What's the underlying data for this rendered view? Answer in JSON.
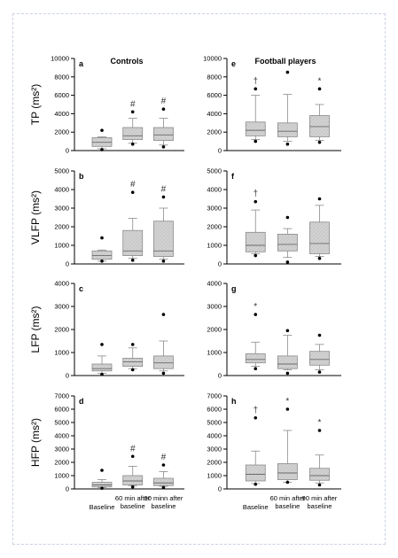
{
  "group_titles": [
    "Controls",
    "Football players"
  ],
  "x_categories": [
    [
      "Baseline"
    ],
    [
      "60 min after",
      "baseline"
    ],
    [
      "90 minn after",
      "baseline"
    ]
  ],
  "x_categories_right": [
    [
      "Baseline"
    ],
    [
      "60 min after",
      "baseline"
    ],
    [
      "90 min after",
      "baseline"
    ]
  ],
  "colors": {
    "box_fill": "#d2d2d2",
    "box_stroke": "#8a8a8a",
    "whisker": "#8a8a8a",
    "outlier": "#000000",
    "axis": "#000000"
  },
  "chart_data": [
    {
      "type": "box",
      "panel": "a",
      "ylabel": "TP (ms²)",
      "ylim": [
        0,
        10000
      ],
      "yticks": [
        0,
        2000,
        4000,
        6000,
        8000,
        10000
      ],
      "group": "Controls",
      "boxes": [
        {
          "category": "Baseline",
          "whisker_low": 200,
          "q1": 450,
          "median": 900,
          "q3": 1400,
          "whisker_high": 1500,
          "outliers": [
            100,
            2200
          ],
          "marker": ""
        },
        {
          "category": "60 min after baseline",
          "whisker_low": 800,
          "q1": 1200,
          "median": 1600,
          "q3": 2500,
          "whisker_high": 3500,
          "outliers": [
            700,
            4200
          ],
          "marker": "#"
        },
        {
          "category": "90 minn after baseline",
          "whisker_low": 600,
          "q1": 1100,
          "median": 1700,
          "q3": 2500,
          "whisker_high": 3500,
          "outliers": [
            400,
            4500
          ],
          "marker": "#"
        }
      ]
    },
    {
      "type": "box",
      "panel": "e",
      "ylabel": "",
      "ylim": [
        0,
        10000
      ],
      "yticks": [
        0,
        2000,
        4000,
        6000,
        8000,
        10000
      ],
      "group": "Football players",
      "boxes": [
        {
          "category": "Baseline",
          "whisker_low": 1200,
          "q1": 1600,
          "median": 2200,
          "q3": 3100,
          "whisker_high": 6000,
          "outliers": [
            1000,
            6700
          ],
          "marker": "†"
        },
        {
          "category": "60 min after baseline",
          "whisker_low": 1000,
          "q1": 1500,
          "median": 2100,
          "q3": 3000,
          "whisker_high": 6100,
          "outliers": [
            700,
            8500
          ],
          "marker": ""
        },
        {
          "category": "90 min after baseline",
          "whisker_low": 1100,
          "q1": 1500,
          "median": 2600,
          "q3": 3800,
          "whisker_high": 5000,
          "outliers": [
            900,
            6700
          ],
          "marker": "*"
        }
      ]
    },
    {
      "type": "box",
      "panel": "b",
      "ylabel": "VLFP (ms²)",
      "ylim": [
        0,
        5000
      ],
      "yticks": [
        0,
        1000,
        2000,
        3000,
        4000,
        5000
      ],
      "group": "Controls",
      "boxes": [
        {
          "category": "Baseline",
          "whisker_low": 150,
          "q1": 250,
          "median": 450,
          "q3": 700,
          "whisker_high": 750,
          "outliers": [
            150,
            1400
          ],
          "marker": ""
        },
        {
          "category": "60 min after baseline",
          "whisker_low": 300,
          "q1": 450,
          "median": 700,
          "q3": 1800,
          "whisker_high": 2450,
          "outliers": [
            200,
            3850
          ],
          "marker": "#"
        },
        {
          "category": "90 minn after baseline",
          "whisker_low": 250,
          "q1": 400,
          "median": 700,
          "q3": 2300,
          "whisker_high": 3000,
          "outliers": [
            150,
            3600
          ],
          "marker": "#"
        }
      ]
    },
    {
      "type": "box",
      "panel": "f",
      "ylabel": "",
      "ylim": [
        0,
        5000
      ],
      "yticks": [
        0,
        1000,
        2000,
        3000,
        4000,
        5000
      ],
      "group": "Football players",
      "boxes": [
        {
          "category": "Baseline",
          "whisker_low": 550,
          "q1": 650,
          "median": 1000,
          "q3": 1700,
          "whisker_high": 2900,
          "outliers": [
            450,
            3350
          ],
          "marker": "†"
        },
        {
          "category": "60 min after baseline",
          "whisker_low": 350,
          "q1": 700,
          "median": 1050,
          "q3": 1600,
          "whisker_high": 1900,
          "outliers": [
            100,
            2500
          ],
          "marker": ""
        },
        {
          "category": "90 min after baseline",
          "whisker_low": 400,
          "q1": 550,
          "median": 1100,
          "q3": 2250,
          "whisker_high": 3150,
          "outliers": [
            300,
            3500
          ],
          "marker": ""
        }
      ]
    },
    {
      "type": "box",
      "panel": "c",
      "ylabel": "LFP (ms²)",
      "ylim": [
        0,
        4000
      ],
      "yticks": [
        0,
        1000,
        2000,
        3000,
        4000
      ],
      "group": "Controls",
      "boxes": [
        {
          "category": "Baseline",
          "whisker_low": 100,
          "q1": 200,
          "median": 300,
          "q3": 500,
          "whisker_high": 850,
          "outliers": [
            50,
            1350
          ],
          "marker": ""
        },
        {
          "category": "60 min after baseline",
          "whisker_low": 300,
          "q1": 400,
          "median": 600,
          "q3": 750,
          "whisker_high": 1200,
          "outliers": [
            250,
            1350
          ],
          "marker": ""
        },
        {
          "category": "90 minn after baseline",
          "whisker_low": 200,
          "q1": 300,
          "median": 550,
          "q3": 850,
          "whisker_high": 1500,
          "outliers": [
            100,
            2650
          ],
          "marker": ""
        }
      ]
    },
    {
      "type": "box",
      "panel": "g",
      "ylabel": "",
      "ylim": [
        0,
        4000
      ],
      "yticks": [
        0,
        1000,
        2000,
        3000,
        4000
      ],
      "group": "Football players",
      "boxes": [
        {
          "category": "Baseline",
          "whisker_low": 400,
          "q1": 550,
          "median": 700,
          "q3": 950,
          "whisker_high": 1450,
          "outliers": [
            300,
            2650
          ],
          "marker": "*"
        },
        {
          "category": "60 min after baseline",
          "whisker_low": 250,
          "q1": 300,
          "median": 500,
          "q3": 850,
          "whisker_high": 1750,
          "outliers": [
            100,
            1950
          ],
          "marker": ""
        },
        {
          "category": "90 min after baseline",
          "whisker_low": 250,
          "q1": 450,
          "median": 700,
          "q3": 1050,
          "whisker_high": 1350,
          "outliers": [
            150,
            1750
          ],
          "marker": ""
        }
      ]
    },
    {
      "type": "box",
      "panel": "d",
      "ylabel": "HFP (ms²)",
      "ylim": [
        0,
        7000
      ],
      "yticks": [
        0,
        1000,
        2000,
        3000,
        4000,
        5000,
        6000,
        7000
      ],
      "group": "Controls",
      "boxes": [
        {
          "category": "Baseline",
          "whisker_low": 100,
          "q1": 150,
          "median": 300,
          "q3": 500,
          "whisker_high": 700,
          "outliers": [
            50,
            1400
          ],
          "marker": ""
        },
        {
          "category": "60 min after baseline",
          "whisker_low": 250,
          "q1": 300,
          "median": 600,
          "q3": 1000,
          "whisker_high": 1700,
          "outliers": [
            150,
            2450
          ],
          "marker": "#"
        },
        {
          "category": "90 minn after baseline",
          "whisker_low": 200,
          "q1": 250,
          "median": 450,
          "q3": 800,
          "whisker_high": 1300,
          "outliers": [
            100,
            1800
          ],
          "marker": "#"
        }
      ]
    },
    {
      "type": "box",
      "panel": "h",
      "ylabel": "",
      "ylim": [
        0,
        7000
      ],
      "yticks": [
        0,
        1000,
        2000,
        3000,
        4000,
        5000,
        6000,
        7000
      ],
      "group": "Football players",
      "boxes": [
        {
          "category": "Baseline",
          "whisker_low": 400,
          "q1": 600,
          "median": 1100,
          "q3": 1800,
          "whisker_high": 2850,
          "outliers": [
            350,
            5350
          ],
          "marker": "†"
        },
        {
          "category": "60 min after baseline",
          "whisker_low": 500,
          "q1": 700,
          "median": 1200,
          "q3": 1900,
          "whisker_high": 4400,
          "outliers": [
            500,
            6000
          ],
          "marker": "*"
        },
        {
          "category": "90 min after baseline",
          "whisker_low": 450,
          "q1": 650,
          "median": 1000,
          "q3": 1550,
          "whisker_high": 2550,
          "outliers": [
            300,
            4400
          ],
          "marker": "*"
        }
      ]
    }
  ]
}
